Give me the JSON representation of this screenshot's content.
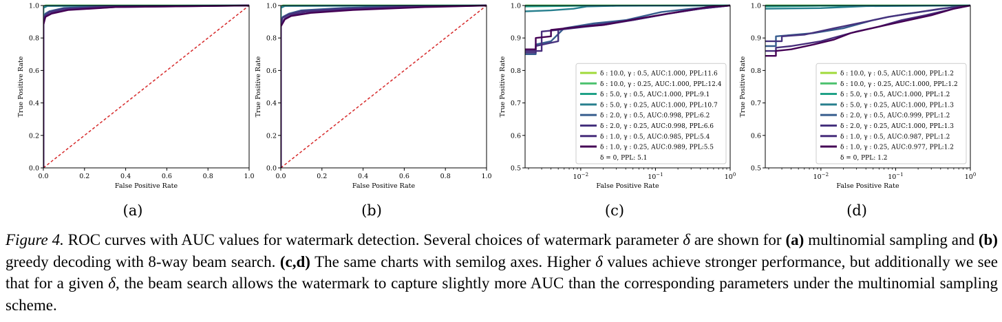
{
  "panels": [
    {
      "sub_label": "(a)",
      "chart_data": {
        "type": "line",
        "xscale": "linear",
        "xlabel": "False Positive Rate",
        "ylabel": "True Positive Rate",
        "xlim": [
          0,
          1
        ],
        "ylim": [
          0,
          1
        ],
        "xticks": [
          "0.0",
          "0.2",
          "0.4",
          "0.6",
          "0.8",
          "1.0"
        ],
        "yticks": [
          "0.0",
          "0.2",
          "0.4",
          "0.6",
          "0.8",
          "1.0"
        ],
        "diagonal": true,
        "series": [
          {
            "color": "#a0da39",
            "x": [
              0,
              0,
              0.01,
              1
            ],
            "y": [
              0,
              0.995,
              1.0,
              1.0
            ]
          },
          {
            "color": "#4ac16d",
            "x": [
              0,
              0,
              0.01,
              1
            ],
            "y": [
              0,
              0.993,
              1.0,
              1.0
            ]
          },
          {
            "color": "#1fa187",
            "x": [
              0,
              0,
              0.02,
              1
            ],
            "y": [
              0,
              0.99,
              0.998,
              1.0
            ]
          },
          {
            "color": "#277f8e",
            "x": [
              0,
              0,
              0.02,
              1
            ],
            "y": [
              0,
              0.985,
              0.997,
              1.0
            ]
          },
          {
            "color": "#365c8d",
            "x": [
              0,
              0,
              0.01,
              0.03,
              0.1,
              0.3,
              1
            ],
            "y": [
              0,
              0.92,
              0.95,
              0.965,
              0.985,
              0.995,
              1.0
            ]
          },
          {
            "color": "#46327e",
            "x": [
              0,
              0,
              0.01,
              0.03,
              0.1,
              0.3,
              1
            ],
            "y": [
              0,
              0.9,
              0.94,
              0.96,
              0.98,
              0.993,
              1.0
            ]
          },
          {
            "color": "#472d7b",
            "x": [
              0,
              0,
              0.01,
              0.04,
              0.12,
              0.35,
              1
            ],
            "y": [
              0,
              0.89,
              0.93,
              0.955,
              0.975,
              0.99,
              1.0
            ]
          },
          {
            "color": "#440154",
            "x": [
              0,
              0,
              0.01,
              0.04,
              0.12,
              0.35,
              1
            ],
            "y": [
              0,
              0.88,
              0.93,
              0.95,
              0.972,
              0.99,
              1.0
            ]
          }
        ]
      }
    },
    {
      "sub_label": "(b)",
      "chart_data": {
        "type": "line",
        "xscale": "linear",
        "xlabel": "False Positive Rate",
        "ylabel": "True Positive Rate",
        "xlim": [
          0,
          1
        ],
        "ylim": [
          0,
          1
        ],
        "xticks": [
          "0.0",
          "0.2",
          "0.4",
          "0.6",
          "0.8",
          "1.0"
        ],
        "yticks": [
          "0.0",
          "0.2",
          "0.4",
          "0.6",
          "0.8",
          "1.0"
        ],
        "diagonal": true,
        "series": [
          {
            "color": "#a0da39",
            "x": [
              0,
              0,
              0.01,
              1
            ],
            "y": [
              0,
              0.995,
              1.0,
              1.0
            ]
          },
          {
            "color": "#4ac16d",
            "x": [
              0,
              0,
              0.01,
              1
            ],
            "y": [
              0,
              0.993,
              1.0,
              1.0
            ]
          },
          {
            "color": "#1fa187",
            "x": [
              0,
              0,
              0.02,
              1
            ],
            "y": [
              0,
              0.99,
              0.998,
              1.0
            ]
          },
          {
            "color": "#277f8e",
            "x": [
              0,
              0,
              0.02,
              1
            ],
            "y": [
              0,
              0.985,
              0.997,
              1.0
            ]
          },
          {
            "color": "#365c8d",
            "x": [
              0,
              0,
              0.01,
              0.04,
              0.1,
              0.3,
              0.6,
              1
            ],
            "y": [
              0,
              0.9,
              0.93,
              0.95,
              0.97,
              0.985,
              0.995,
              1.0
            ]
          },
          {
            "color": "#46327e",
            "x": [
              0,
              0,
              0.01,
              0.04,
              0.1,
              0.3,
              0.6,
              1
            ],
            "y": [
              0,
              0.89,
              0.925,
              0.945,
              0.965,
              0.98,
              0.993,
              1.0
            ]
          },
          {
            "color": "#472d7b",
            "x": [
              0,
              0,
              0.02,
              0.05,
              0.12,
              0.3,
              0.6,
              1
            ],
            "y": [
              0,
              0.88,
              0.92,
              0.94,
              0.96,
              0.975,
              0.99,
              1.0
            ]
          },
          {
            "color": "#440154",
            "x": [
              0,
              0,
              0.02,
              0.05,
              0.15,
              0.35,
              0.7,
              1
            ],
            "y": [
              0,
              0.87,
              0.915,
              0.935,
              0.955,
              0.972,
              0.99,
              1.0
            ]
          }
        ]
      }
    },
    {
      "sub_label": "(c)",
      "chart_data": {
        "type": "line",
        "xscale": "log",
        "xlabel": "False Positive Rate",
        "ylabel": "True Positive Rate",
        "xlim": [
          0.0018,
          1
        ],
        "ylim": [
          0.5,
          1
        ],
        "xticks_major": [
          {
            "value": 0.01,
            "base": "10",
            "exp": "−2"
          },
          {
            "value": 0.1,
            "base": "10",
            "exp": "−1"
          },
          {
            "value": 1,
            "base": "10",
            "exp": "0"
          }
        ],
        "yticks": [
          "0.5",
          "0.6",
          "0.7",
          "0.8",
          "0.9",
          "1.0"
        ],
        "diagonal": false,
        "legend": {
          "placement": "lower-right",
          "entries": [
            {
              "label": "δ : 10.0, γ : 0.5, AUC:1.000, PPL:11.6",
              "color": "#a0da39"
            },
            {
              "label": "δ : 10.0, γ : 0.25, AUC:1.000, PPL:12.4",
              "color": "#4ac16d"
            },
            {
              "label": "δ : 5.0, γ : 0.5, AUC:1.000, PPL:9.1",
              "color": "#1fa187"
            },
            {
              "label": "δ : 5.0, γ : 0.25, AUC:1.000, PPL:10.7",
              "color": "#277f8e"
            },
            {
              "label": "δ : 2.0, γ : 0.5, AUC:0.998, PPL:6.2",
              "color": "#365c8d"
            },
            {
              "label": "δ : 2.0, γ : 0.25, AUC:0.998, PPL:6.6",
              "color": "#46327e"
            },
            {
              "label": "δ : 1.0, γ : 0.5, AUC:0.985, PPL:5.4",
              "color": "#472d7b"
            },
            {
              "label": "δ : 1.0, γ : 0.25, AUC:0.989, PPL:5.5",
              "color": "#440154"
            },
            {
              "label": "δ = 0, PPL: 5.1",
              "color": ""
            }
          ]
        },
        "series": [
          {
            "color": "#a0da39",
            "x": [
              0.0018,
              1
            ],
            "y": [
              1.0,
              1.0
            ]
          },
          {
            "color": "#4ac16d",
            "x": [
              0.0018,
              1
            ],
            "y": [
              1.0,
              1.0
            ]
          },
          {
            "color": "#1fa187",
            "x": [
              0.0018,
              0.01,
              1
            ],
            "y": [
              0.997,
              0.999,
              1.0
            ]
          },
          {
            "color": "#277f8e",
            "x": [
              0.0018,
              0.004,
              0.008,
              0.012,
              0.03,
              1
            ],
            "y": [
              0.982,
              0.985,
              0.99,
              0.997,
              0.999,
              1.0
            ]
          },
          {
            "color": "#365c8d",
            "x": [
              0.0018,
              0.0025,
              0.0025,
              0.004,
              0.006,
              0.015,
              0.04,
              0.12,
              0.3,
              1
            ],
            "y": [
              0.85,
              0.85,
              0.88,
              0.89,
              0.93,
              0.945,
              0.955,
              0.98,
              0.99,
              1.0
            ]
          },
          {
            "color": "#46327e",
            "x": [
              0.0018,
              0.0025,
              0.0025,
              0.005,
              0.005,
              0.015,
              0.05,
              0.15,
              0.4,
              1
            ],
            "y": [
              0.855,
              0.855,
              0.875,
              0.89,
              0.925,
              0.94,
              0.955,
              0.975,
              0.99,
              1.0
            ]
          },
          {
            "color": "#472d7b",
            "x": [
              0.0018,
              0.003,
              0.003,
              0.005,
              0.012,
              0.02,
              0.05,
              0.15,
              0.4,
              1
            ],
            "y": [
              0.86,
              0.86,
              0.92,
              0.925,
              0.935,
              0.94,
              0.955,
              0.975,
              0.99,
              1.0
            ]
          },
          {
            "color": "#440154",
            "x": [
              0.0018,
              0.0025,
              0.0025,
              0.004,
              0.004,
              0.01,
              0.02,
              0.06,
              0.2,
              0.5,
              1
            ],
            "y": [
              0.865,
              0.865,
              0.9,
              0.905,
              0.925,
              0.935,
              0.94,
              0.96,
              0.98,
              0.995,
              1.0
            ]
          }
        ]
      }
    },
    {
      "sub_label": "(d)",
      "chart_data": {
        "type": "line",
        "xscale": "log",
        "xlabel": "False Positive Rate",
        "ylabel": "True Positive Rate",
        "xlim": [
          0.0018,
          1
        ],
        "ylim": [
          0.5,
          1
        ],
        "xticks_major": [
          {
            "value": 0.01,
            "base": "10",
            "exp": "−2"
          },
          {
            "value": 0.1,
            "base": "10",
            "exp": "−1"
          },
          {
            "value": 1,
            "base": "10",
            "exp": "0"
          }
        ],
        "yticks": [
          "0.5",
          "0.6",
          "0.7",
          "0.8",
          "0.9",
          "1.0"
        ],
        "diagonal": false,
        "legend": {
          "placement": "lower-right",
          "entries": [
            {
              "label": "δ : 10.0, γ : 0.5, AUC:1.000, PPL:1.2",
              "color": "#a0da39"
            },
            {
              "label": "δ : 10.0, γ : 0.25, AUC:1.000, PPL:1.2",
              "color": "#4ac16d"
            },
            {
              "label": "δ : 5.0, γ : 0.5, AUC:1.000, PPL:1.2",
              "color": "#1fa187"
            },
            {
              "label": "δ : 5.0, γ : 0.25, AUC:1.000, PPL:1.3",
              "color": "#277f8e"
            },
            {
              "label": "δ : 2.0, γ : 0.5, AUC:0.999, PPL:1.2",
              "color": "#365c8d"
            },
            {
              "label": "δ : 2.0, γ : 0.25, AUC:1.000, PPL:1.3",
              "color": "#46327e"
            },
            {
              "label": "δ : 1.0, γ : 0.5, AUC:0.987, PPL:1.2",
              "color": "#472d7b"
            },
            {
              "label": "δ : 1.0, γ : 0.25, AUC:0.977, PPL:1.2",
              "color": "#440154"
            },
            {
              "label": "δ = 0, PPL: 1.2",
              "color": ""
            }
          ]
        },
        "series": [
          {
            "color": "#a0da39",
            "x": [
              0.0018,
              1
            ],
            "y": [
              1.0,
              1.0
            ]
          },
          {
            "color": "#4ac16d",
            "x": [
              0.0018,
              1
            ],
            "y": [
              1.0,
              1.0
            ]
          },
          {
            "color": "#1fa187",
            "x": [
              0.0018,
              0.01,
              1
            ],
            "y": [
              0.997,
              0.999,
              1.0
            ]
          },
          {
            "color": "#277f8e",
            "x": [
              0.0018,
              0.01,
              0.04,
              1
            ],
            "y": [
              0.99,
              0.992,
              0.998,
              1.0
            ]
          },
          {
            "color": "#365c8d",
            "x": [
              0.0018,
              0.0025,
              0.0025,
              0.008,
              0.02,
              0.05,
              0.08,
              0.15,
              0.3,
              0.6,
              1
            ],
            "y": [
              0.875,
              0.875,
              0.905,
              0.915,
              0.93,
              0.955,
              0.965,
              0.975,
              0.985,
              0.995,
              1.0
            ]
          },
          {
            "color": "#46327e",
            "x": [
              0.0018,
              0.003,
              0.003,
              0.006,
              0.015,
              0.04,
              0.08,
              0.15,
              0.4,
              1
            ],
            "y": [
              0.89,
              0.89,
              0.905,
              0.91,
              0.93,
              0.95,
              0.965,
              0.975,
              0.99,
              1.0
            ]
          },
          {
            "color": "#472d7b",
            "x": [
              0.0018,
              0.0025,
              0.0025,
              0.004,
              0.01,
              0.03,
              0.06,
              0.12,
              0.25,
              0.6,
              1
            ],
            "y": [
              0.86,
              0.86,
              0.87,
              0.875,
              0.89,
              0.92,
              0.935,
              0.955,
              0.97,
              0.99,
              1.0
            ]
          },
          {
            "color": "#440154",
            "x": [
              0.0018,
              0.0025,
              0.0025,
              0.004,
              0.008,
              0.015,
              0.025,
              0.06,
              0.12,
              0.3,
              0.6,
              1
            ],
            "y": [
              0.845,
              0.845,
              0.86,
              0.865,
              0.88,
              0.895,
              0.915,
              0.935,
              0.95,
              0.97,
              0.99,
              1.0
            ]
          }
        ]
      }
    }
  ],
  "caption": {
    "prefix": "Figure 4.",
    "t1": " ROC curves with AUC values for watermark detection. Several choices of watermark parameter ",
    "delta": "δ",
    "t2": " are shown for ",
    "b1": "(a)",
    "t3": " multinomial sampling and ",
    "b2": "(b)",
    "t4": " greedy decoding with 8-way beam search. ",
    "b3": "(c,d)",
    "t5": " The same charts with semilog axes. Higher ",
    "t6": " values achieve stronger performance, but additionally we see that for a given ",
    "t7": ", the beam search allows the watermark to capture slightly more AUC than the corresponding parameters under the multinomial sampling scheme."
  }
}
